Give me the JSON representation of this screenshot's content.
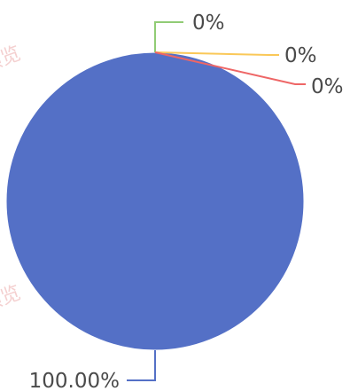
{
  "chart_data": {
    "type": "pie",
    "categories": [
      "",
      "",
      "",
      ""
    ],
    "values": [
      100.0,
      0,
      0,
      0
    ],
    "data_labels": [
      "100.00%",
      "0%",
      "0%",
      "0%"
    ],
    "colors": [
      "#5470c6",
      "#91cc75",
      "#fac858",
      "#ee6666"
    ],
    "title": "",
    "legend": "none"
  },
  "watermark": {
    "text": "仅供预览"
  }
}
